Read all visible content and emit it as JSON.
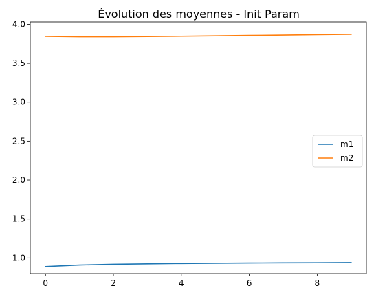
{
  "chart_data": {
    "type": "line",
    "title": "Évolution des moyennes - Init Param",
    "xlabel": "",
    "ylabel": "",
    "xlim": [
      -0.45,
      9.45
    ],
    "ylim": [
      0.8,
      4.03
    ],
    "x_ticks": [
      0,
      2,
      4,
      6,
      8
    ],
    "x_tick_labels": [
      "0",
      "2",
      "4",
      "6",
      "8"
    ],
    "y_ticks": [
      1.0,
      1.5,
      2.0,
      2.5,
      3.0,
      3.5,
      4.0
    ],
    "y_tick_labels": [
      "1.0",
      "1.5",
      "2.0",
      "2.5",
      "3.0",
      "3.5",
      "4.0"
    ],
    "grid": false,
    "legend_position": "center-right",
    "x": [
      0,
      1,
      2,
      3,
      4,
      5,
      6,
      7,
      8,
      9
    ],
    "series": [
      {
        "name": "m1",
        "color": "#1f77b4",
        "values": [
          0.89,
          0.91,
          0.92,
          0.925,
          0.93,
          0.933,
          0.936,
          0.938,
          0.94,
          0.942
        ]
      },
      {
        "name": "m2",
        "color": "#ff7f0e",
        "values": [
          3.845,
          3.84,
          3.84,
          3.843,
          3.847,
          3.852,
          3.857,
          3.862,
          3.867,
          3.872
        ]
      }
    ]
  }
}
